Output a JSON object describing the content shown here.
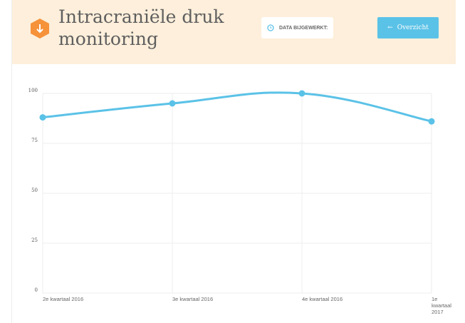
{
  "header": {
    "title_line1": "Intracraniële druk",
    "title_line2": "monitoring",
    "data_updated_label": "DATA BIJGEWERKT:",
    "overview_button": "Overzicht",
    "accent": "#f5923a",
    "button_color": "#5bc2e7"
  },
  "chart_data": {
    "type": "line",
    "categories": [
      [
        "2e kwartaal 2016"
      ],
      [
        "3e kwartaal 2016"
      ],
      [
        "4e kwartaal 2016"
      ],
      [
        "1e",
        "kwartaal",
        "2017"
      ]
    ],
    "values": [
      88,
      95,
      100,
      86
    ],
    "ylim": [
      0,
      100
    ],
    "yticks": [
      0,
      25,
      50,
      75,
      100
    ],
    "grid": true,
    "line_color": "#5bc2e7",
    "title": "",
    "xlabel": "",
    "ylabel": ""
  }
}
